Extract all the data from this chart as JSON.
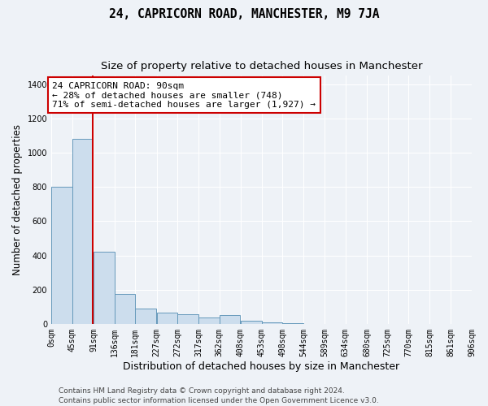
{
  "title": "24, CAPRICORN ROAD, MANCHESTER, M9 7JA",
  "subtitle": "Size of property relative to detached houses in Manchester",
  "xlabel": "Distribution of detached houses by size in Manchester",
  "ylabel": "Number of detached properties",
  "bar_color": "#ccdded",
  "bar_edge_color": "#6699bb",
  "annotation_box_color": "#cc0000",
  "vline_color": "#cc0000",
  "property_size": 90,
  "annotation_line1": "24 CAPRICORN ROAD: 90sqm",
  "annotation_line2": "← 28% of detached houses are smaller (748)",
  "annotation_line3": "71% of semi-detached houses are larger (1,927) →",
  "footer1": "Contains HM Land Registry data © Crown copyright and database right 2024.",
  "footer2": "Contains public sector information licensed under the Open Government Licence v3.0.",
  "bin_edges": [
    0,
    45,
    91,
    136,
    181,
    227,
    272,
    317,
    362,
    408,
    453,
    498,
    544,
    589,
    634,
    680,
    725,
    770,
    815,
    861,
    906
  ],
  "bin_labels": [
    "0sqm",
    "45sqm",
    "91sqm",
    "136sqm",
    "181sqm",
    "227sqm",
    "272sqm",
    "317sqm",
    "362sqm",
    "408sqm",
    "453sqm",
    "498sqm",
    "544sqm",
    "589sqm",
    "634sqm",
    "680sqm",
    "725sqm",
    "770sqm",
    "815sqm",
    "861sqm",
    "906sqm"
  ],
  "bar_heights": [
    800,
    1080,
    420,
    175,
    90,
    65,
    55,
    35,
    50,
    20,
    8,
    5,
    0,
    0,
    0,
    0,
    0,
    0,
    0,
    0
  ],
  "ylim": [
    0,
    1450
  ],
  "yticks": [
    0,
    200,
    400,
    600,
    800,
    1000,
    1200,
    1400
  ],
  "background_color": "#eef2f7",
  "plot_bg_color": "#eef2f7",
  "grid_color": "#ffffff",
  "title_fontsize": 10.5,
  "subtitle_fontsize": 9.5,
  "ylabel_fontsize": 8.5,
  "xlabel_fontsize": 9,
  "tick_fontsize": 7,
  "footer_fontsize": 6.5,
  "annot_fontsize": 8
}
